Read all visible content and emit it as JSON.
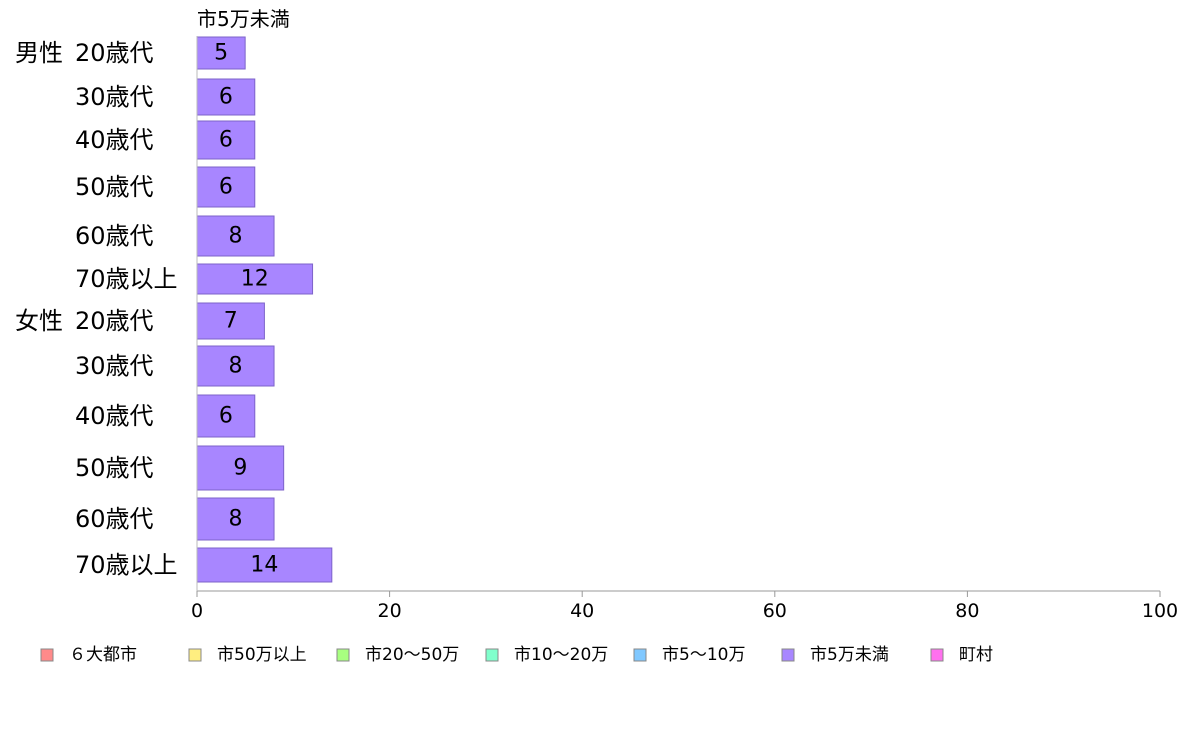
{
  "chart_data": {
    "type": "bar",
    "orientation": "horizontal",
    "title": "市5万未満",
    "groups": [
      {
        "name": "男性",
        "categories": [
          "20歳代",
          "30歳代",
          "40歳代",
          "50歳代",
          "60歳代",
          "70歳以上"
        ],
        "values": [
          5,
          6,
          6,
          6,
          8,
          12
        ]
      },
      {
        "name": "女性",
        "categories": [
          "20歳代",
          "30歳代",
          "40歳代",
          "50歳代",
          "60歳代",
          "70歳以上"
        ],
        "values": [
          7,
          8,
          6,
          9,
          8,
          14
        ]
      }
    ],
    "series_name": "市5万未満",
    "series_color": "#a886ff",
    "xlim": [
      0,
      100
    ],
    "xticks": [
      0,
      20,
      40,
      60,
      80,
      100
    ],
    "grid": false,
    "legend_position": "bottom",
    "legend": [
      {
        "label": "６大都市",
        "color": "#ff8a8a"
      },
      {
        "label": "市50万以上",
        "color": "#ffee80"
      },
      {
        "label": "市20～50万",
        "color": "#a8ff80"
      },
      {
        "label": "市10～20万",
        "color": "#80ffcc"
      },
      {
        "label": "市5～10万",
        "color": "#80c8ff"
      },
      {
        "label": "市5万未満",
        "color": "#a886ff"
      },
      {
        "label": "町村",
        "color": "#ff70ee"
      }
    ]
  }
}
